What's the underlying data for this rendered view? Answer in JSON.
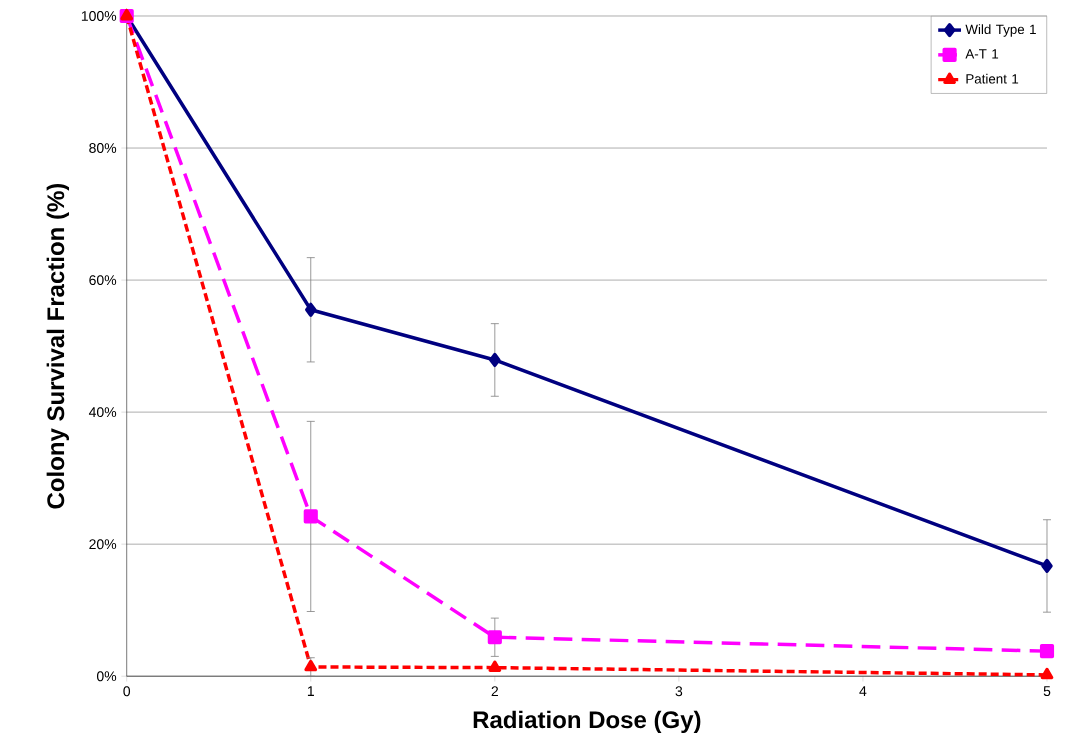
{
  "chart_data": {
    "type": "line",
    "xlabel": "Radiation Dose (Gy)",
    "ylabel": "Colony Survival Fraction (%)",
    "x": [
      0,
      1,
      2,
      5
    ],
    "series": [
      {
        "name": "Wild Type 1",
        "color": "#000080",
        "values": [
          100,
          55.5,
          47.9,
          16.7
        ],
        "errors": [
          null,
          7.9,
          5.5,
          7
        ],
        "marker": "diamond",
        "line_style": "solid"
      },
      {
        "name": "A-T 1",
        "color": "#ff00ff",
        "values": [
          100,
          24.2,
          5.9,
          3.8
        ],
        "errors": [
          null,
          14.4,
          2.9,
          null
        ],
        "marker": "square",
        "line_style": "dashed"
      },
      {
        "name": "Patient 1",
        "color": "#ff0000",
        "values": [
          100,
          1.4,
          1.3,
          0.2
        ],
        "errors": [
          null,
          1.4,
          null,
          null
        ],
        "marker": "triangle",
        "line_style": "dotted"
      }
    ],
    "xlim": [
      0,
      5
    ],
    "xticks": [
      0,
      1,
      2,
      3,
      4,
      5
    ],
    "ylim": [
      0,
      100
    ],
    "yticks": [
      {
        "value": 0,
        "label": "0%"
      },
      {
        "value": 20,
        "label": "20%"
      },
      {
        "value": 40,
        "label": "40%"
      },
      {
        "value": 60,
        "label": "60%"
      },
      {
        "value": 80,
        "label": "80%"
      },
      {
        "value": 100,
        "label": "100%"
      }
    ],
    "grid": "y",
    "legend": "top right"
  }
}
